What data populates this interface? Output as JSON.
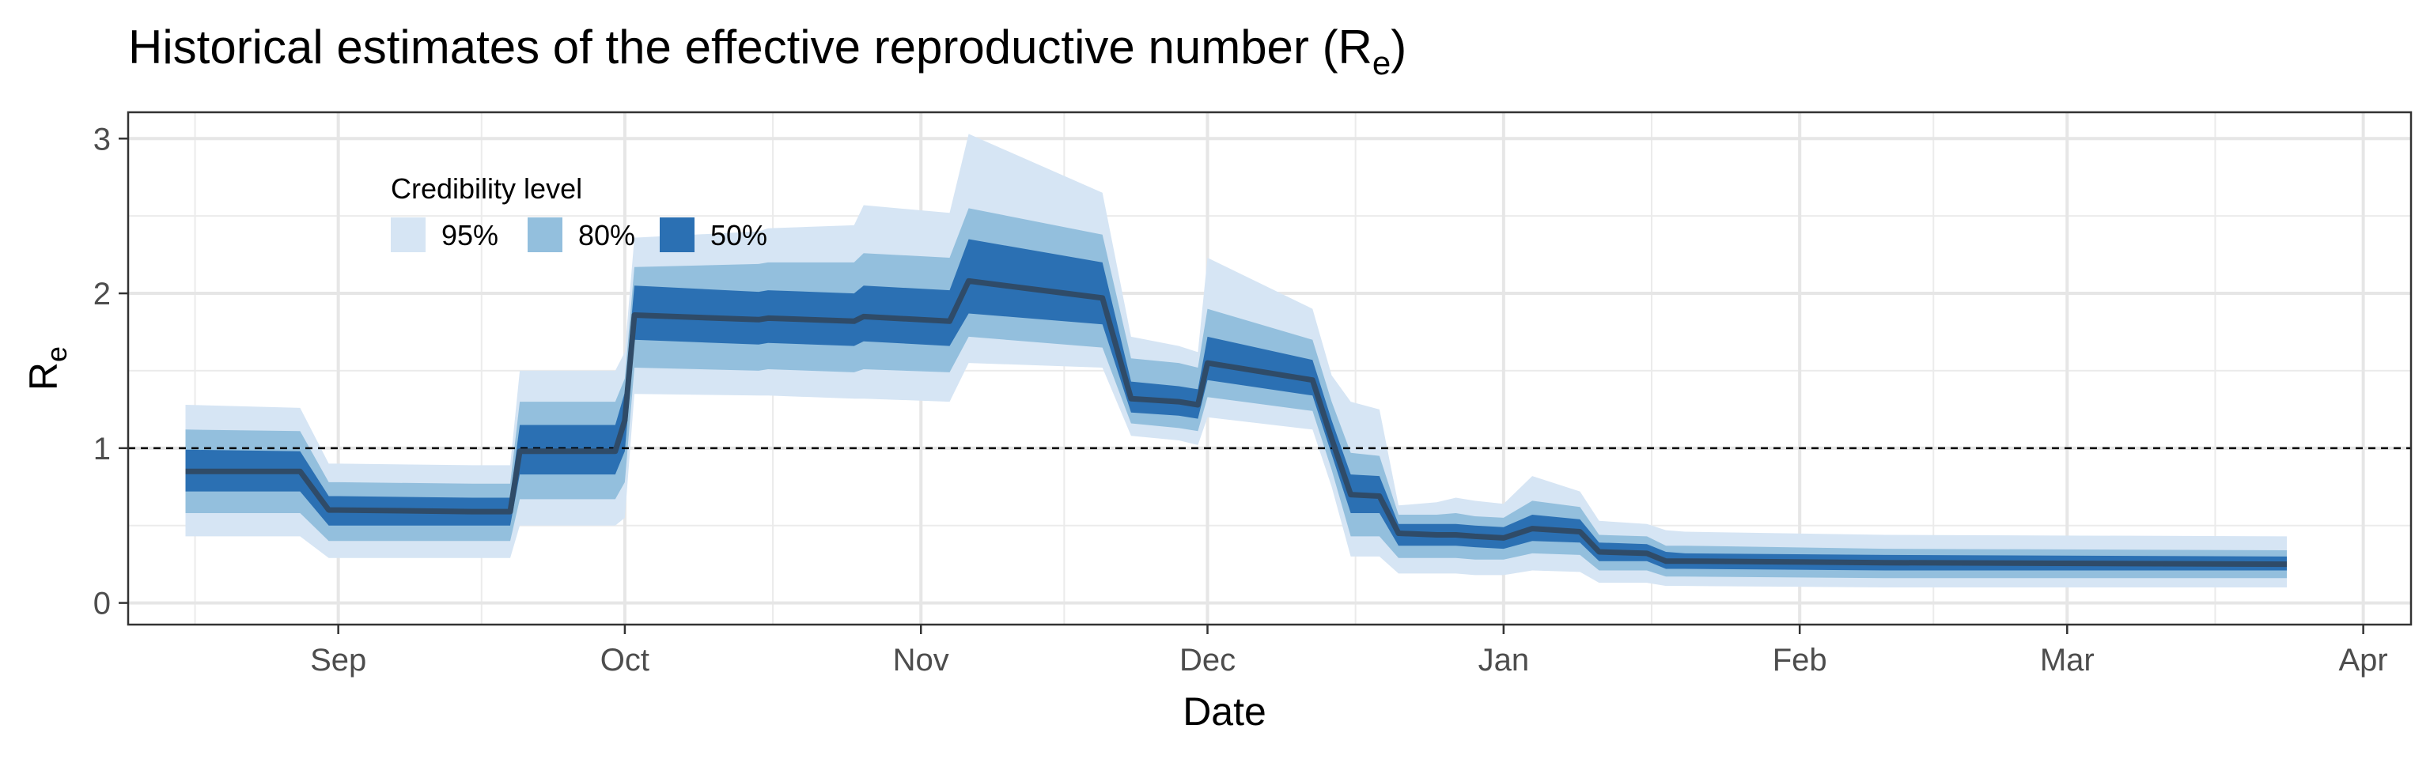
{
  "chart_data": {
    "type": "area",
    "title": "Historical estimates of the effective reproductive number (R",
    "title_sub": "e",
    "title_end": ")",
    "xlabel": "Date",
    "ylabel": "R",
    "ylabel_sub": "e",
    "xlim": [
      "2020-08-10",
      "2021-04-06"
    ],
    "ylim": [
      -0.14,
      3.17
    ],
    "x_ticks": [
      {
        "date": "2020-09-01",
        "label": "Sep"
      },
      {
        "date": "2020-10-01",
        "label": "Oct"
      },
      {
        "date": "2020-11-01",
        "label": "Nov"
      },
      {
        "date": "2020-12-01",
        "label": "Dec"
      },
      {
        "date": "2021-01-01",
        "label": "Jan"
      },
      {
        "date": "2021-02-01",
        "label": "Feb"
      },
      {
        "date": "2021-03-01",
        "label": "Mar"
      },
      {
        "date": "2021-04-01",
        "label": "Apr"
      }
    ],
    "y_ticks": [
      0,
      1,
      2,
      3
    ],
    "reference_line": {
      "y": 1,
      "style": "dashed"
    },
    "grid": true,
    "legend": {
      "title": "Credibility level",
      "placement": "top-left",
      "items": [
        {
          "label": "95%",
          "color": "#d6e5f4"
        },
        {
          "label": "80%",
          "color": "#93bfdd"
        },
        {
          "label": "50%",
          "color": "#2b70b3"
        }
      ]
    },
    "colors": {
      "median": "#2f4b68",
      "ci95": "#d6e5f4",
      "ci80": "#93bfdd",
      "ci50": "#2b70b3"
    },
    "x": [
      "2020-08-16",
      "2020-08-28",
      "2020-08-31",
      "2020-09-01",
      "2020-09-15",
      "2020-09-16",
      "2020-09-19",
      "2020-09-20",
      "2020-09-30",
      "2020-10-01",
      "2020-10-02",
      "2020-10-15",
      "2020-10-16",
      "2020-10-25",
      "2020-10-26",
      "2020-11-04",
      "2020-11-06",
      "2020-11-20",
      "2020-11-23",
      "2020-11-28",
      "2020-11-30",
      "2020-12-01",
      "2020-12-12",
      "2020-12-14",
      "2020-12-16",
      "2020-12-19",
      "2020-12-21",
      "2020-12-25",
      "2020-12-27",
      "2020-12-29",
      "2021-01-01",
      "2021-01-04",
      "2021-01-09",
      "2021-01-11",
      "2021-01-16",
      "2021-01-18",
      "2021-01-20",
      "2021-02-10",
      "2021-03-24"
    ],
    "median": [
      0.85,
      0.85,
      0.6,
      0.6,
      0.59,
      0.59,
      0.59,
      0.98,
      0.98,
      1.18,
      1.86,
      1.83,
      1.84,
      1.82,
      1.85,
      1.82,
      2.08,
      1.97,
      1.32,
      1.3,
      1.28,
      1.55,
      1.44,
      1.06,
      0.7,
      0.69,
      0.45,
      0.44,
      0.44,
      0.43,
      0.42,
      0.48,
      0.46,
      0.33,
      0.32,
      0.27,
      0.27,
      0.26,
      0.25
    ],
    "lo95": [
      0.43,
      0.43,
      0.29,
      0.29,
      0.29,
      0.29,
      0.29,
      0.5,
      0.5,
      0.55,
      1.35,
      1.34,
      1.34,
      1.32,
      1.32,
      1.3,
      1.55,
      1.52,
      1.08,
      1.05,
      1.02,
      1.2,
      1.12,
      0.75,
      0.3,
      0.3,
      0.19,
      0.19,
      0.19,
      0.18,
      0.18,
      0.21,
      0.2,
      0.13,
      0.13,
      0.11,
      0.11,
      0.1,
      0.1
    ],
    "hi95": [
      1.28,
      1.26,
      0.9,
      0.9,
      0.89,
      0.89,
      0.89,
      1.5,
      1.5,
      1.62,
      2.36,
      2.4,
      2.42,
      2.44,
      2.57,
      2.52,
      3.03,
      2.65,
      1.72,
      1.66,
      1.62,
      2.23,
      1.9,
      1.47,
      1.3,
      1.25,
      0.63,
      0.65,
      0.68,
      0.66,
      0.64,
      0.82,
      0.72,
      0.53,
      0.51,
      0.47,
      0.46,
      0.44,
      0.43
    ],
    "lo80": [
      0.58,
      0.58,
      0.4,
      0.4,
      0.4,
      0.4,
      0.4,
      0.67,
      0.67,
      0.78,
      1.52,
      1.5,
      1.51,
      1.49,
      1.51,
      1.49,
      1.72,
      1.65,
      1.16,
      1.13,
      1.11,
      1.33,
      1.24,
      0.86,
      0.43,
      0.43,
      0.29,
      0.29,
      0.29,
      0.28,
      0.28,
      0.32,
      0.31,
      0.21,
      0.21,
      0.17,
      0.17,
      0.16,
      0.16
    ],
    "hi80": [
      1.12,
      1.11,
      0.78,
      0.78,
      0.77,
      0.77,
      0.77,
      1.3,
      1.3,
      1.45,
      2.17,
      2.19,
      2.2,
      2.2,
      2.26,
      2.23,
      2.55,
      2.38,
      1.58,
      1.55,
      1.52,
      1.9,
      1.7,
      1.3,
      0.97,
      0.95,
      0.57,
      0.57,
      0.58,
      0.56,
      0.55,
      0.66,
      0.62,
      0.44,
      0.43,
      0.37,
      0.37,
      0.35,
      0.34
    ],
    "lo50": [
      0.72,
      0.72,
      0.5,
      0.5,
      0.5,
      0.5,
      0.5,
      0.83,
      0.83,
      0.98,
      1.7,
      1.67,
      1.68,
      1.66,
      1.69,
      1.66,
      1.87,
      1.8,
      1.23,
      1.21,
      1.19,
      1.44,
      1.34,
      0.96,
      0.58,
      0.58,
      0.37,
      0.37,
      0.37,
      0.36,
      0.35,
      0.4,
      0.39,
      0.27,
      0.27,
      0.22,
      0.22,
      0.21,
      0.21
    ],
    "hi50": [
      0.99,
      0.98,
      0.69,
      0.69,
      0.68,
      0.68,
      0.68,
      1.15,
      1.15,
      1.36,
      2.05,
      2.01,
      2.02,
      2.0,
      2.05,
      2.02,
      2.35,
      2.2,
      1.43,
      1.4,
      1.38,
      1.72,
      1.57,
      1.18,
      0.83,
      0.82,
      0.51,
      0.51,
      0.51,
      0.5,
      0.49,
      0.57,
      0.54,
      0.39,
      0.38,
      0.33,
      0.32,
      0.31,
      0.3
    ]
  }
}
